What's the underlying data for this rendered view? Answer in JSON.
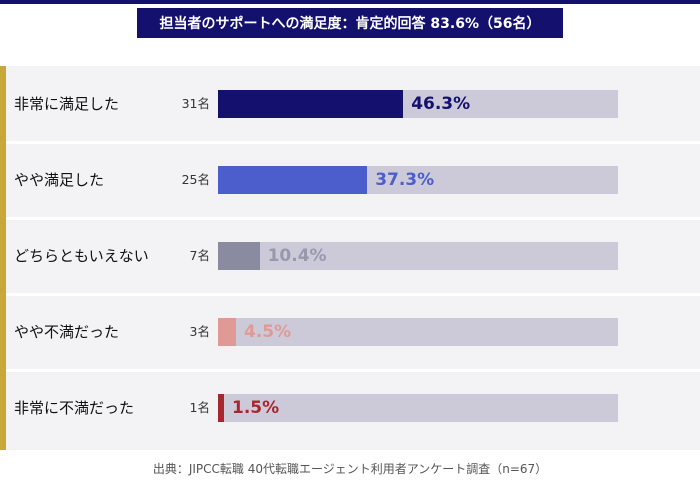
{
  "chart_data": {
    "type": "bar",
    "orientation": "horizontal",
    "title": "担当者のサポートへの満足度：肯定的回答 83.6%（56名）",
    "categories": [
      "非常に満足した",
      "やや満足した",
      "どちらともいえない",
      "やや不満だった",
      "非常に不満だった"
    ],
    "values": [
      46.3,
      37.3,
      10.4,
      4.5,
      1.5
    ],
    "value_labels": [
      "46.3%",
      "37.3%",
      "10.4%",
      "4.5%",
      "1.5%"
    ],
    "counts": [
      "31名",
      "25名",
      "7名",
      "3名",
      "1名"
    ],
    "colors": [
      "#14106e",
      "#4b5ecb",
      "#8a8aa0",
      "#e09a96",
      "#a8262f"
    ],
    "label_colors": [
      "#14106e",
      "#4b5ecb",
      "#9898ac",
      "#e09a96",
      "#a8262f"
    ],
    "xlim": [
      0,
      100
    ],
    "source": "出典：JIPCC転職 40代転職エージェント利用者アンケート調査（n=67）"
  },
  "colors": {
    "title_bg": "#14106e",
    "track": "#cccad8",
    "accent": "#c9a83a"
  }
}
